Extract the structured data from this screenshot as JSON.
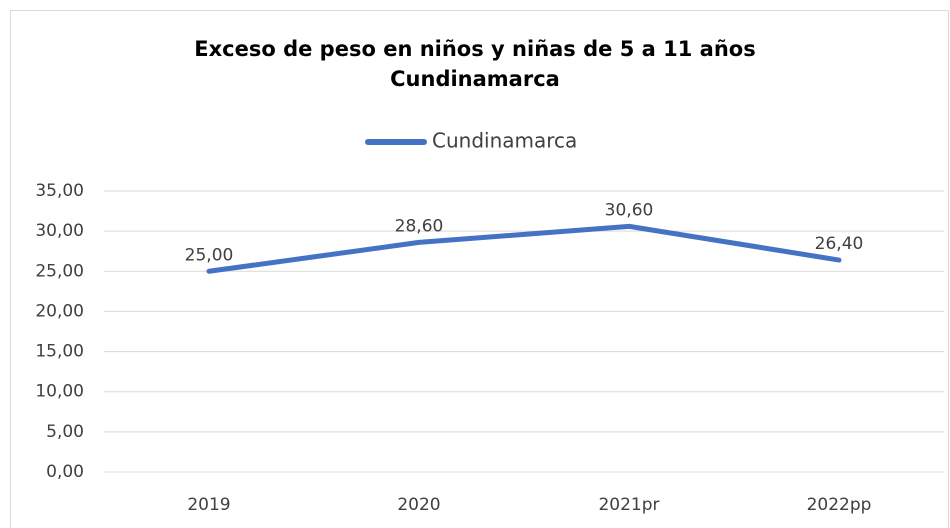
{
  "chart_data": {
    "type": "line",
    "title": [
      "Exceso de peso en niños y niñas de 5 a 11 años",
      "Cundinamarca"
    ],
    "categories": [
      "2019",
      "2020",
      "2021pr",
      "2022pp"
    ],
    "series": [
      {
        "name": "Cundinamarca",
        "color": "#4472c4",
        "values": [
          25.0,
          28.6,
          30.6,
          26.4
        ],
        "value_labels": [
          "25,00",
          "28,60",
          "30,60",
          "26,40"
        ]
      }
    ],
    "ylim": [
      0,
      35
    ],
    "yticks": [
      {
        "value": 0,
        "label": "0,00"
      },
      {
        "value": 5,
        "label": "5,00"
      },
      {
        "value": 10,
        "label": "10,00"
      },
      {
        "value": 15,
        "label": "15,00"
      },
      {
        "value": 20,
        "label": "20,00"
      },
      {
        "value": 25,
        "label": "25,00"
      },
      {
        "value": 30,
        "label": "30,00"
      },
      {
        "value": 35,
        "label": "35,00"
      }
    ],
    "grid": true,
    "legend": "top"
  }
}
